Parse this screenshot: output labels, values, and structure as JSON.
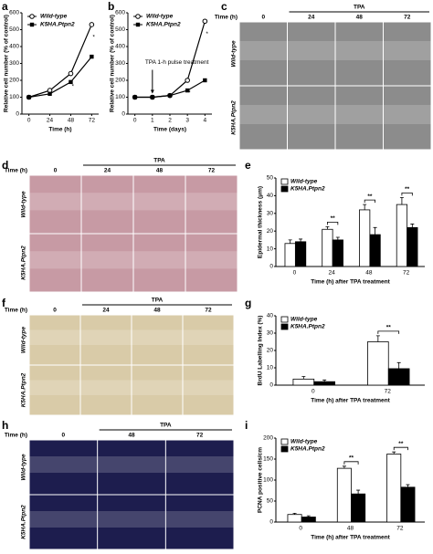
{
  "chart_data": [
    {
      "type": "line",
      "label": "a",
      "ylabel": "Relative cell number (% of control)",
      "xlabel": "Time (h)",
      "x": [
        0,
        24,
        48,
        72
      ],
      "xlim": [
        -8,
        80
      ],
      "xticks": [
        0,
        24,
        48,
        72
      ],
      "ylim": [
        0,
        600
      ],
      "yticks": [
        0,
        100,
        200,
        300,
        400,
        500,
        600
      ],
      "series": [
        {
          "name": "Wild-type",
          "marker": "o",
          "color": "#000000",
          "values": [
            100,
            140,
            240,
            530
          ]
        },
        {
          "name": "K5HA.Ptpn2",
          "marker": "s",
          "color": "#000000",
          "values": [
            100,
            120,
            190,
            340
          ]
        }
      ],
      "annotations": [
        {
          "text": "*",
          "x": 48
        },
        {
          "text": "*",
          "x": 72
        }
      ],
      "legend": "upper left"
    },
    {
      "type": "line",
      "label": "b",
      "ylabel": "Relative cell number (% of control)",
      "xlabel": "Time (days)",
      "x": [
        0,
        1,
        2,
        3,
        4
      ],
      "xlim": [
        -0.4,
        4.4
      ],
      "xticks": [
        0,
        1,
        2,
        3,
        4
      ],
      "ylim": [
        0,
        600
      ],
      "yticks": [
        0,
        100,
        200,
        300,
        400,
        500,
        600
      ],
      "series": [
        {
          "name": "Wild-type",
          "marker": "o",
          "color": "#000000",
          "values": [
            100,
            100,
            110,
            200,
            550
          ]
        },
        {
          "name": "K5HA.Ptpn2",
          "marker": "s",
          "color": "#000000",
          "values": [
            100,
            100,
            110,
            140,
            200
          ]
        }
      ],
      "annotations": [
        {
          "text": "*",
          "x": 3
        },
        {
          "text": "*",
          "x": 4
        }
      ],
      "arrow_annotation": {
        "text": "TPA 1-h pulse treatment",
        "x": 1
      },
      "legend": "upper left"
    },
    {
      "type": "bar",
      "label": "e",
      "ylabel": "Epidermal thickness (μm)",
      "xlabel": "Time (h) after TPA treatment",
      "categories": [
        "0",
        "24",
        "48",
        "72"
      ],
      "ylim": [
        0,
        50
      ],
      "yticks": [
        0,
        10,
        20,
        30,
        40,
        50
      ],
      "series": [
        {
          "name": "Wild-type",
          "color": "#ffffff",
          "values": [
            13,
            21,
            32,
            35
          ],
          "errors": [
            2,
            1.5,
            3,
            4
          ]
        },
        {
          "name": "K5HA.Ptpn2",
          "color": "#000000",
          "values": [
            14,
            15,
            18,
            22
          ],
          "errors": [
            1.5,
            1.5,
            4,
            2
          ]
        }
      ],
      "annotations": [
        {
          "text": "**",
          "category": "24"
        },
        {
          "text": "**",
          "category": "48"
        },
        {
          "text": "**",
          "category": "72"
        }
      ],
      "legend": "upper left"
    },
    {
      "type": "bar",
      "label": "g",
      "ylabel": "BrdU Labelling Index (%)",
      "xlabel": "Time (h) after TPA treatment",
      "categories": [
        "0",
        "72"
      ],
      "ylim": [
        0,
        40
      ],
      "yticks": [
        0,
        10,
        20,
        30,
        40
      ],
      "series": [
        {
          "name": "Wild-type",
          "color": "#ffffff",
          "values": [
            3.5,
            25
          ],
          "errors": [
            1.5,
            3.5
          ]
        },
        {
          "name": "K5HA.Ptpn2",
          "color": "#000000",
          "values": [
            2,
            9.5
          ],
          "errors": [
            1,
            3.5
          ]
        }
      ],
      "annotations": [
        {
          "text": "**",
          "category": "72"
        }
      ],
      "legend": "upper left"
    },
    {
      "type": "bar",
      "label": "i",
      "ylabel": "PCNA positive cells/cm",
      "xlabel": "Time (h) after TPA treatment",
      "categories": [
        "0",
        "48",
        "72"
      ],
      "ylim": [
        0,
        200
      ],
      "yticks": [
        0,
        50,
        100,
        150,
        200
      ],
      "series": [
        {
          "name": "Wild-type",
          "color": "#ffffff",
          "values": [
            18,
            128,
            162
          ],
          "errors": [
            3,
            5,
            5
          ]
        },
        {
          "name": "K5HA.Ptpn2",
          "color": "#000000",
          "values": [
            12,
            67,
            83
          ],
          "errors": [
            3,
            9,
            6
          ]
        }
      ],
      "annotations": [
        {
          "text": "**",
          "category": "48"
        },
        {
          "text": "**",
          "category": "72"
        }
      ],
      "legend": "upper left"
    }
  ],
  "image_panels": [
    {
      "label": "c",
      "header": "TPA",
      "time_label": "Time (h)",
      "columns": [
        "0",
        "24",
        "48",
        "72"
      ],
      "rows": [
        "Wild-type",
        "K5HA.Ptpn2"
      ],
      "tone": "#8c8c8c"
    },
    {
      "label": "d",
      "header": "TPA",
      "time_label": "Time (h)",
      "columns": [
        "0",
        "24",
        "48",
        "72"
      ],
      "rows": [
        "Wild-type",
        "K5HA.Ptpn2"
      ],
      "tone": "#c79aa4"
    },
    {
      "label": "f",
      "header": "TPA",
      "time_label": "Time (h)",
      "columns": [
        "0",
        "24",
        "48",
        "72"
      ],
      "rows": [
        "Wild-type",
        "K5HA.Ptpn2"
      ],
      "tone": "#d9cba8"
    },
    {
      "label": "h",
      "header": "TPA",
      "time_label": "Time (h)",
      "columns": [
        "0",
        "48",
        "72"
      ],
      "rows": [
        "Wild-type",
        "K5HA.Ptpn2"
      ],
      "tone": "#1d1d4e"
    }
  ]
}
